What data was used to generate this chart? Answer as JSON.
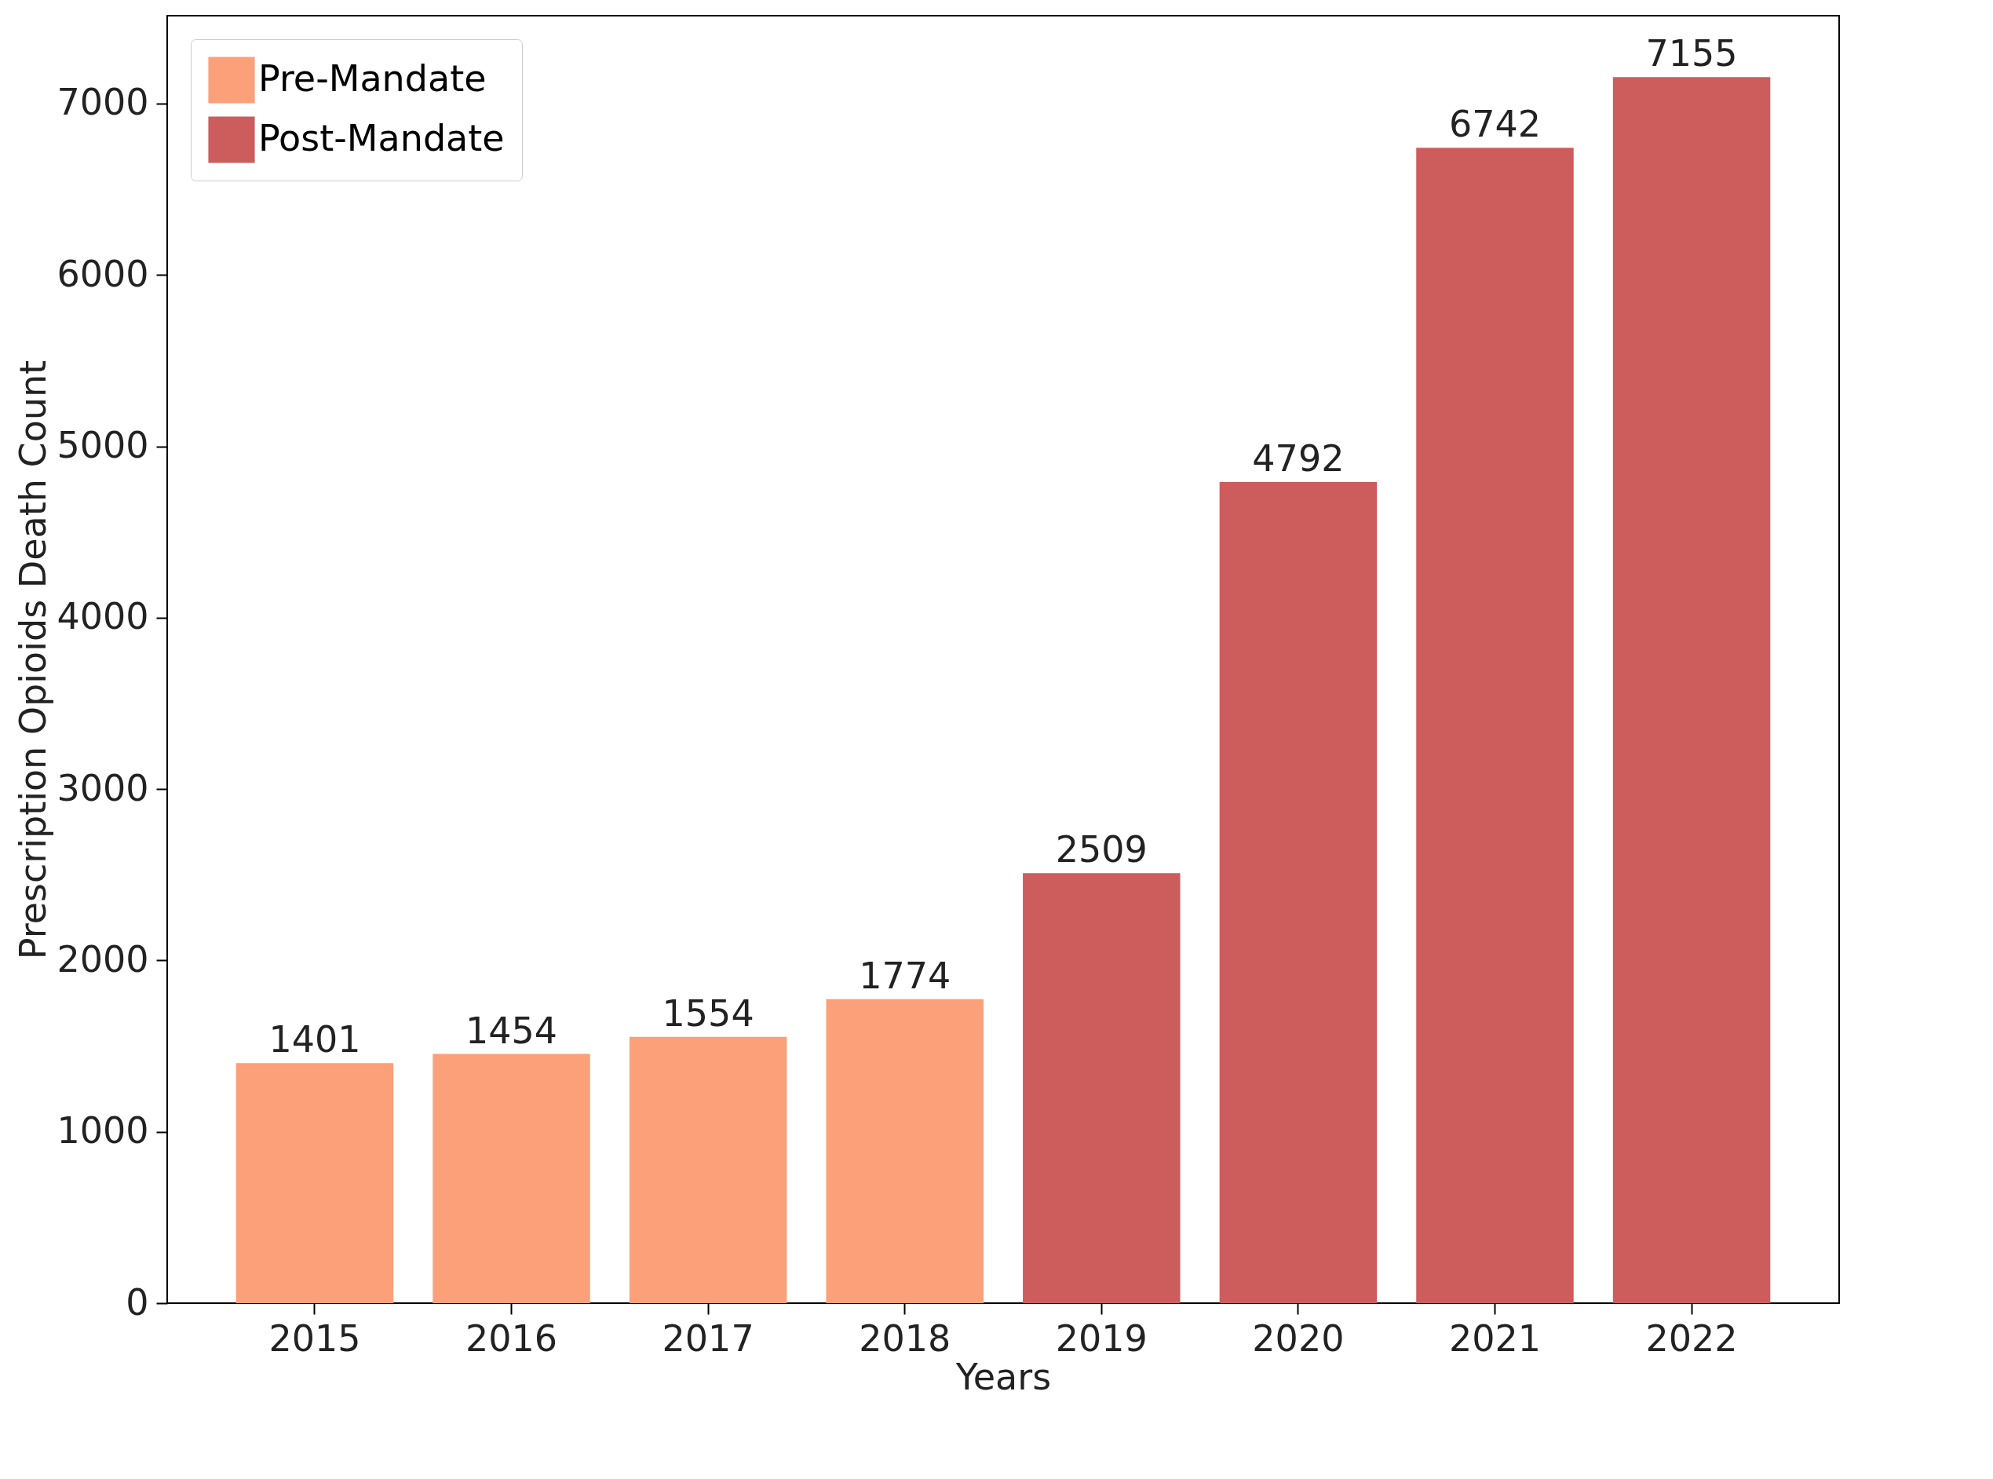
{
  "chart_data": {
    "type": "bar",
    "xlabel": "Years",
    "ylabel": "Prescription Opioids Death Count",
    "categories": [
      "2015",
      "2016",
      "2017",
      "2018",
      "2019",
      "2020",
      "2021",
      "2022"
    ],
    "series": [
      {
        "name": "Pre-Mandate",
        "color": "#fca079",
        "values": [
          1401,
          1454,
          1554,
          1774,
          null,
          null,
          null,
          null
        ]
      },
      {
        "name": "Post-Mandate",
        "color": "#cd5c5c",
        "values": [
          null,
          null,
          null,
          null,
          2509,
          4792,
          6742,
          7155
        ]
      }
    ],
    "ylim": [
      0,
      7513
    ],
    "yticks": [
      0,
      1000,
      2000,
      3000,
      4000,
      5000,
      6000,
      7000
    ],
    "data_labels": true,
    "grid": false,
    "legend": "top left"
  }
}
